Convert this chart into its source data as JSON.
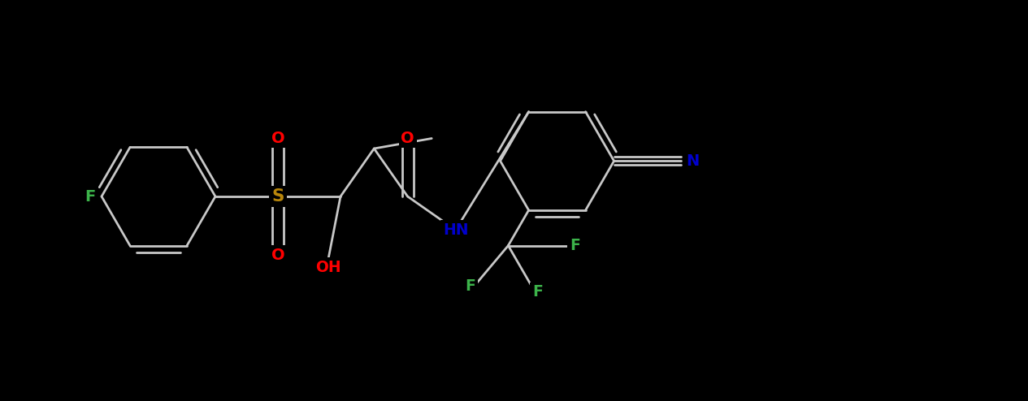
{
  "bg_color": "#000000",
  "bond_color": "#c8c8c8",
  "atom_colors": {
    "F": "#3cb34a",
    "S": "#b8860b",
    "O": "#ff0000",
    "N": "#0000cd",
    "C": "#c8c8c8"
  },
  "figsize": [
    12.65,
    4.94
  ],
  "dpi": 100,
  "bond_lw": 2.0,
  "font_size": 13.5
}
